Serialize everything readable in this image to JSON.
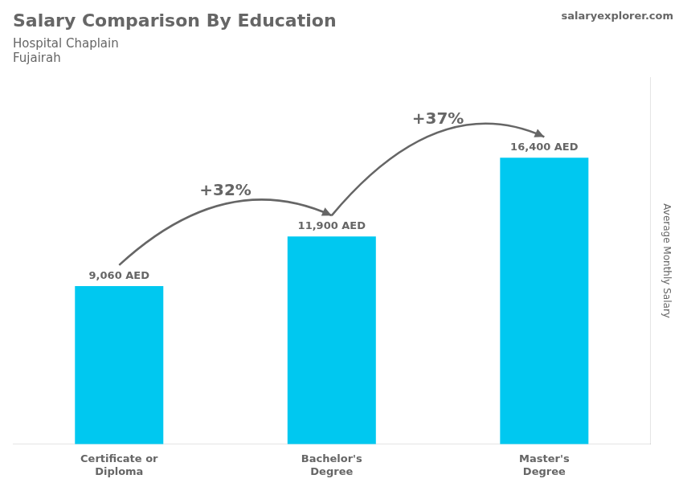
{
  "chart_data": {
    "type": "bar",
    "title": "Salary Comparison By Education",
    "subtitle": [
      "Hospital Chaplain",
      "Fujairah"
    ],
    "source": "salaryexplorer.com",
    "ylabel": "Average Monthly Salary",
    "categories": [
      "Certificate or\nDiploma",
      "Bachelor's\nDegree",
      "Master's\nDegree"
    ],
    "values": [
      9060,
      11900,
      16400
    ],
    "value_labels": [
      "9,060 AED",
      "11,900 AED",
      "16,400 AED"
    ],
    "data_labels": true,
    "annotations": [
      "+32%",
      "+37%"
    ],
    "color": "#00C8F0",
    "ylim": [
      0,
      21000
    ],
    "grid": false,
    "tick_labels": "x"
  }
}
